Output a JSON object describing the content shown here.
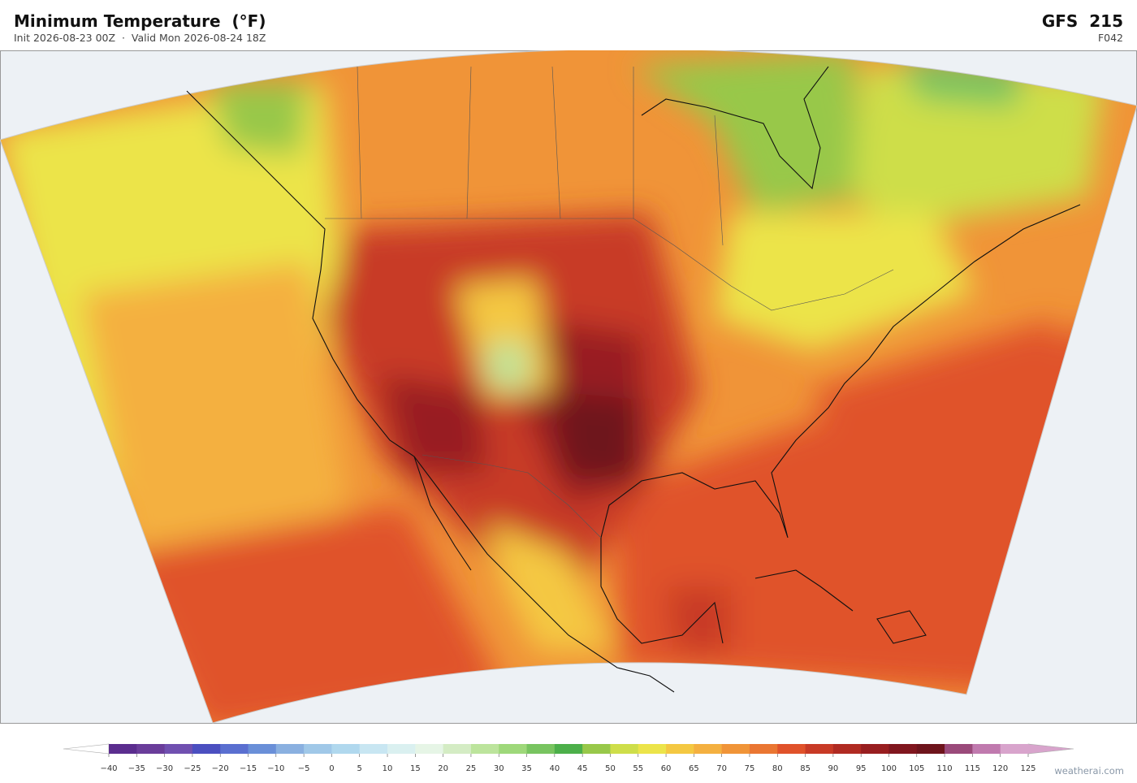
{
  "header": {
    "title": "Minimum Temperature  (°F)",
    "subtitle": "Init 2026-08-23 00Z  ·  Valid Mon 2026-08-24 18Z",
    "model": "GFS  215",
    "forecast_hour": "F042"
  },
  "colorbar": {
    "ticks": [
      {
        "value": -40,
        "label": "−40"
      },
      {
        "value": -35,
        "label": "−35"
      },
      {
        "value": -30,
        "label": "−30"
      },
      {
        "value": -25,
        "label": "−25"
      },
      {
        "value": -20,
        "label": "−20"
      },
      {
        "value": -15,
        "label": "−15"
      },
      {
        "value": -10,
        "label": "−10"
      },
      {
        "value": -5,
        "label": "−5"
      },
      0,
      5,
      10,
      15,
      20,
      25,
      30,
      35,
      40,
      45,
      50,
      55,
      60,
      65,
      70,
      75,
      80,
      85,
      90,
      95,
      100,
      105,
      110,
      115,
      120,
      125
    ],
    "colors": [
      "#5b2d8e",
      "#6a3d9a",
      "#7050b0",
      "#4b4fc0",
      "#5a6fd0",
      "#6a8fd8",
      "#8ab0e0",
      "#a0c8e8",
      "#b0d8ee",
      "#c8e6f2",
      "#daf0f0",
      "#e6f5e6",
      "#d4ecc4",
      "#bce49c",
      "#9ed87a",
      "#78c460",
      "#4caf4a",
      "#98c84a",
      "#cede4a",
      "#ece44a",
      "#f4c842",
      "#f4b040",
      "#f09438",
      "#ea7632",
      "#e0522a",
      "#c83a26",
      "#b02a22",
      "#981e20",
      "#80161e",
      "#6e141c",
      "#9a4a7a",
      "#c07aae",
      "#d8a4cc"
    ]
  },
  "credit": "weatherai.com"
}
